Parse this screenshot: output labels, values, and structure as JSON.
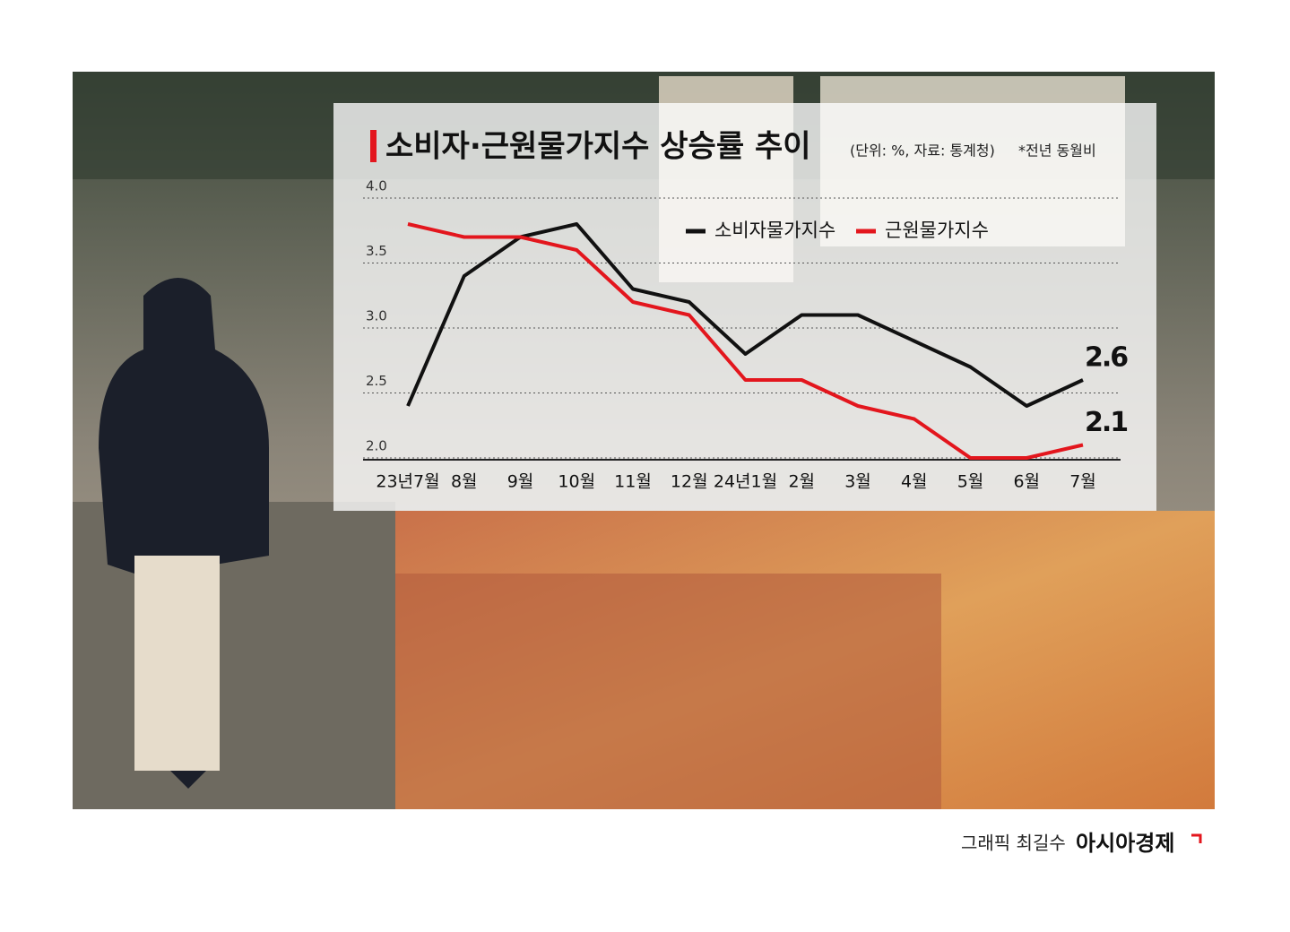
{
  "chart_data": {
    "type": "line",
    "title": "소비자·근원물가지수 상승률 추이",
    "subtitle": "(단위: %, 자료: 통계청)",
    "note": "*전년 동월비",
    "categories": [
      "23년7월",
      "8월",
      "9월",
      "10월",
      "11월",
      "12월",
      "24년1월",
      "2월",
      "3월",
      "4월",
      "5월",
      "6월",
      "7월"
    ],
    "series": [
      {
        "name": "소비자물가지수",
        "color": "#111111",
        "values": [
          2.4,
          3.4,
          3.7,
          3.8,
          3.3,
          3.2,
          2.8,
          3.1,
          3.1,
          2.9,
          2.7,
          2.4,
          2.6
        ]
      },
      {
        "name": "근원물가지수",
        "color": "#e3161d",
        "values": [
          3.8,
          3.7,
          3.7,
          3.6,
          3.2,
          3.1,
          2.6,
          2.6,
          2.4,
          2.3,
          2.0,
          2.0,
          2.1
        ]
      }
    ],
    "ylim": [
      2.0,
      4.0
    ],
    "yticks": [
      {
        "value": 2,
        "label": "2.0"
      },
      {
        "value": 2.5,
        "label": "2.5"
      },
      {
        "value": 3,
        "label": "3.0"
      },
      {
        "value": 3.5,
        "label": "3.5"
      },
      {
        "value": 4,
        "label": "4.0"
      }
    ],
    "grid": true
  },
  "credit": "그래픽 최길수",
  "brand": "아시아경제"
}
